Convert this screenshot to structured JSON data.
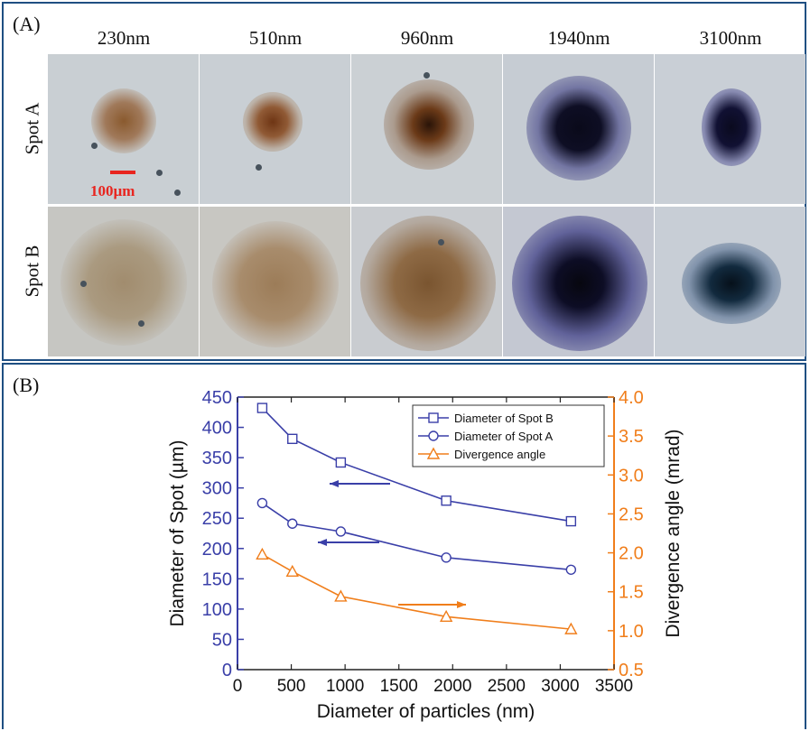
{
  "panel_a": {
    "label": "(A)",
    "particle_sizes": [
      "230nm",
      "510nm",
      "960nm",
      "1940nm",
      "3100nm"
    ],
    "rows": [
      "Spot A",
      "Spot B"
    ],
    "scale_bar": "100µm"
  },
  "panel_b": {
    "label": "(B)"
  },
  "colors": {
    "blue": "#3a3fa8",
    "orange": "#f07e1b",
    "frame": "#1f4f82",
    "scale": "#e8251f"
  },
  "chart_data": {
    "type": "line",
    "xlabel": "Diameter of particles (nm)",
    "ylabel_left": "Diameter of Spot (µm)",
    "ylabel_right": "Divergence angle  (mrad)",
    "x_ticks": [
      "0",
      "500",
      "1000",
      "1500",
      "2000",
      "2500",
      "3000",
      "3500"
    ],
    "y_left_ticks": [
      "0",
      "50",
      "100",
      "150",
      "200",
      "250",
      "300",
      "350",
      "400",
      "450"
    ],
    "y_right_ticks": [
      "0.5",
      "1.0",
      "1.5",
      "2.0",
      "2.5",
      "3.0",
      "3.5",
      "4.0"
    ],
    "xlim": [
      0,
      3500
    ],
    "ylim_left": [
      0,
      450
    ],
    "ylim_right": [
      0.5,
      4.0
    ],
    "x": [
      230,
      510,
      960,
      1940,
      3100
    ],
    "series": [
      {
        "name": "Diameter of Spot B",
        "axis": "left",
        "marker": "square",
        "color": "#3a3fa8",
        "values": [
          432,
          381,
          342,
          279,
          245
        ]
      },
      {
        "name": "Diameter of Spot A",
        "axis": "left",
        "marker": "circle",
        "color": "#3a3fa8",
        "values": [
          275,
          241,
          228,
          185,
          165
        ]
      },
      {
        "name": "Divergence angle",
        "axis": "right",
        "marker": "triangle",
        "color": "#f07e1b",
        "values": [
          1.98,
          1.76,
          1.44,
          1.18,
          1.02
        ]
      }
    ],
    "legend_position": "top-right",
    "grid": false
  }
}
